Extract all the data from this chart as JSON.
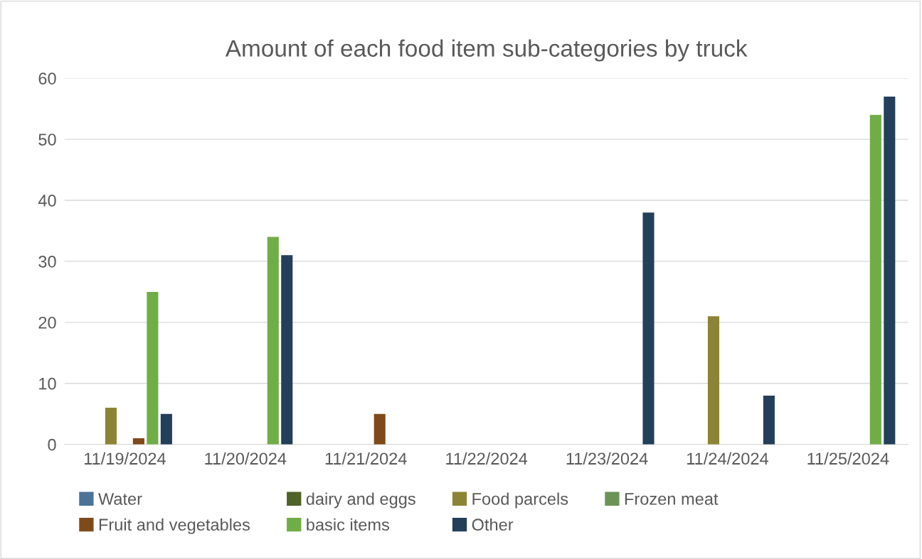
{
  "chart_data": {
    "type": "bar",
    "title": "Amount of each food item sub-categories by truck",
    "categories": [
      "11/19/2024",
      "11/20/2024",
      "11/21/2024",
      "11/22/2024",
      "11/23/2024",
      "11/24/2024",
      "11/25/2024"
    ],
    "series": [
      {
        "name": "Water",
        "color": "#4a7397",
        "values": [
          null,
          null,
          null,
          null,
          null,
          null,
          null
        ]
      },
      {
        "name": "dairy and eggs",
        "color": "#4f6228",
        "values": [
          null,
          null,
          null,
          null,
          null,
          null,
          null
        ]
      },
      {
        "name": "Food parcels",
        "color": "#8c8435",
        "values": [
          6,
          null,
          null,
          null,
          null,
          21,
          null
        ]
      },
      {
        "name": "Frozen meat",
        "color": "#6b9358",
        "values": [
          null,
          null,
          null,
          null,
          null,
          null,
          null
        ]
      },
      {
        "name": "Fruit and vegetables",
        "color": "#7f4a1a",
        "values": [
          1,
          null,
          5,
          null,
          null,
          null,
          null
        ]
      },
      {
        "name": "basic items",
        "color": "#70ad47",
        "values": [
          25,
          34,
          null,
          null,
          null,
          null,
          54
        ]
      },
      {
        "name": "Other",
        "color": "#243f5a",
        "values": [
          5,
          31,
          null,
          null,
          38,
          8,
          57
        ]
      }
    ],
    "ylim": [
      0,
      60
    ],
    "yticks": [
      0,
      10,
      20,
      30,
      40,
      50,
      60
    ],
    "grid": "y",
    "legend": "bottom"
  }
}
